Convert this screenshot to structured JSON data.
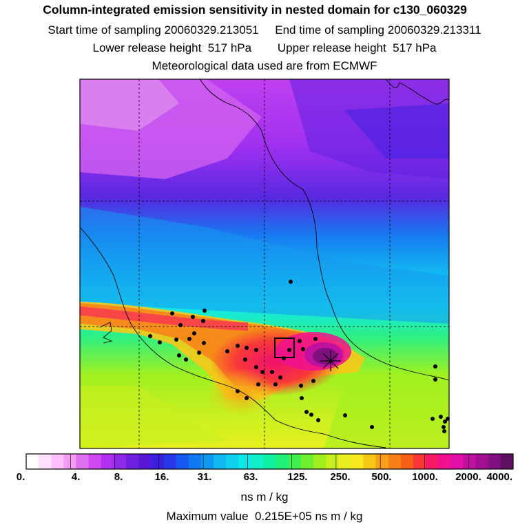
{
  "title": "Column-integrated emission sensitivity in nested domain for c130_060329",
  "subtitle_lines": {
    "start": "Start time of sampling 20060329.213051",
    "end": "End time of sampling 20060329.213311",
    "lower": "Lower release height  517 hPa",
    "upper": "Upper release height  517 hPa",
    "met": "Meteorological data used are from ECMWF"
  },
  "chart_data": {
    "type": "heatmap",
    "title": "Column-integrated emission sensitivity in nested domain for c130_060329",
    "colorbar": {
      "tick_labels": [
        "0.",
        "4.",
        "8.",
        "16.",
        "31.",
        "63.",
        "125.",
        "250.",
        "500.",
        "1000.",
        "2000.",
        "4000."
      ],
      "label": "ns m / kg",
      "colors": [
        "#ffffff",
        "#ffe0ff",
        "#ffc0ff",
        "#f39cf3",
        "#e070f0",
        "#d048f0",
        "#b030f0",
        "#9028e8",
        "#7020e0",
        "#5818d8",
        "#3c20e0",
        "#2838e8",
        "#1858f0",
        "#1078f0",
        "#1098f0",
        "#10b8f0",
        "#10d0f0",
        "#10e8e8",
        "#10f0c8",
        "#10f0a0",
        "#20f078",
        "#40f050",
        "#70f030",
        "#a0f020",
        "#c8f020",
        "#e8f020",
        "#f8e820",
        "#f8c818",
        "#f8a018",
        "#f88018",
        "#f86018",
        "#f83838",
        "#f81868",
        "#f01090",
        "#e010a8",
        "#c010a0",
        "#a01090",
        "#801080",
        "#601060"
      ]
    },
    "max_value_text": "Maximum value  0.215E+05 ns m / kg",
    "grid": true
  },
  "colors": {
    "frame": "#000000",
    "peak": "#602060"
  }
}
